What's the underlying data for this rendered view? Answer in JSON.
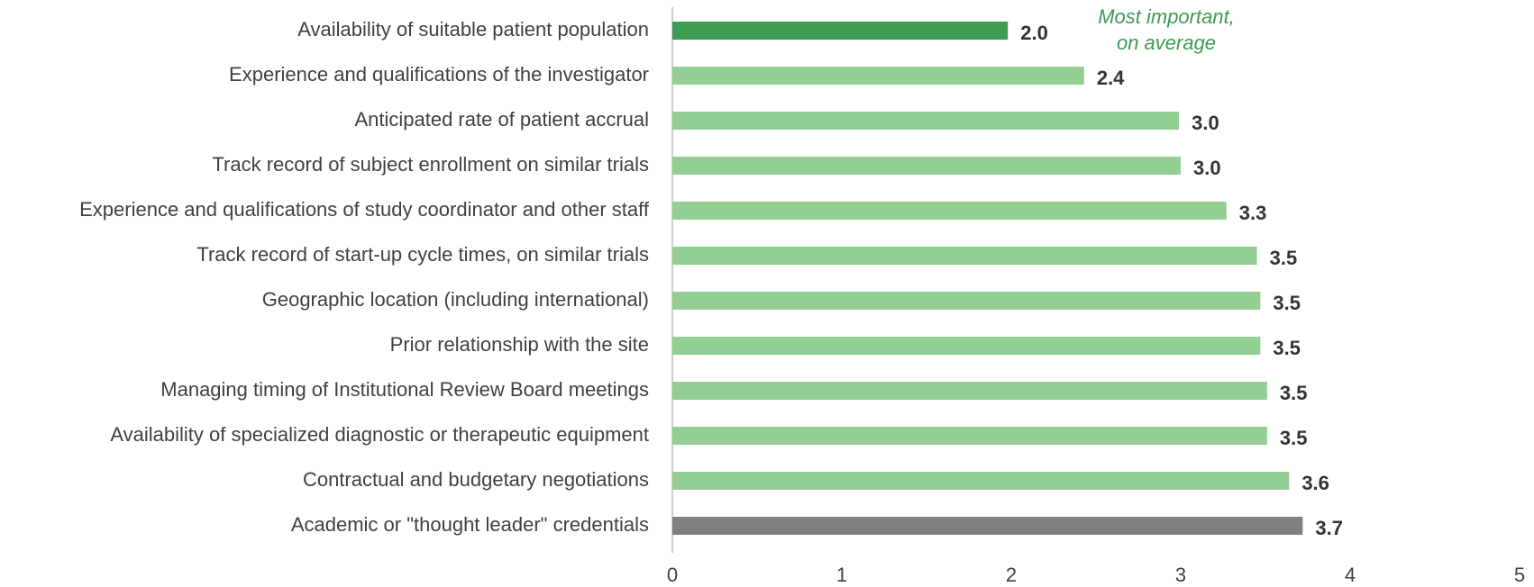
{
  "chart_data": {
    "type": "barh",
    "categories": [
      "Availability of suitable patient population",
      "Experience and qualifications of the investigator",
      "Anticipated rate of patient accrual",
      "Track record of subject enrollment on similar trials",
      "Experience and qualifications of study coordinator and other staff",
      "Track record of start-up cycle times, on similar trials",
      "Geographic location (including international)",
      "Prior relationship with the site",
      "Managing timing of Institutional Review Board meetings",
      "Availability of specialized diagnostic or therapeutic equipment",
      "Contractual and budgetary negotiations",
      "Academic or \"thought leader\" credentials"
    ],
    "values": [
      1.98,
      2.43,
      2.99,
      3.0,
      3.27,
      3.45,
      3.47,
      3.47,
      3.51,
      3.51,
      3.64,
      3.72
    ],
    "value_labels": [
      "2.0",
      "2.4",
      "3.0",
      "3.0",
      "3.3",
      "3.5",
      "3.5",
      "3.5",
      "3.5",
      "3.5",
      "3.6",
      "3.7"
    ],
    "colors": [
      "#3d9b52",
      "#93cf93",
      "#93cf93",
      "#93cf93",
      "#93cf93",
      "#93cf93",
      "#93cf93",
      "#93cf93",
      "#93cf93",
      "#93cf93",
      "#93cf93",
      "#808080"
    ],
    "annotation": [
      "Most important,",
      "on average"
    ],
    "xlim": [
      0,
      5
    ],
    "xticks": [
      0,
      1,
      2,
      3,
      4,
      5
    ],
    "grid": false
  }
}
